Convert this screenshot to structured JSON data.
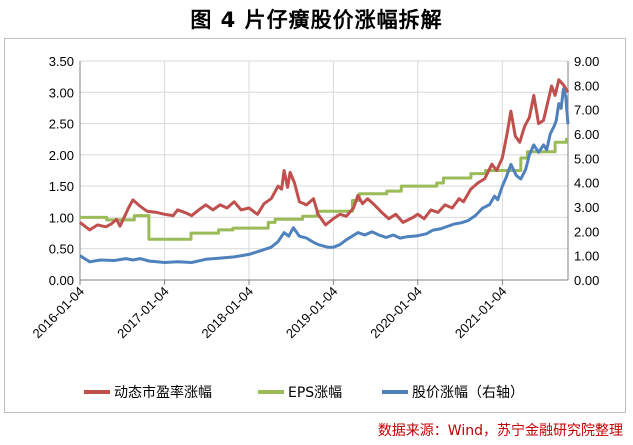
{
  "title": "图 4  片仔癀股价涨幅拆解",
  "source": "数据来源：Wind，苏宁金融研究院整理",
  "chart_data": {
    "type": "line",
    "title": "图 4  片仔癀股价涨幅拆解",
    "x_type": "date",
    "x_range": [
      "2016-01-04",
      "2021-10-15"
    ],
    "x_ticks": [
      "2016-01-04",
      "2017-01-04",
      "2018-01-04",
      "2019-01-04",
      "2020-01-04",
      "2021-01-04"
    ],
    "ylim_left": [
      0,
      3.5
    ],
    "yticks_left": [
      "0.00",
      "0.50",
      "1.00",
      "1.50",
      "2.00",
      "2.50",
      "3.00",
      "3.50"
    ],
    "ylim_right": [
      0,
      9
    ],
    "yticks_right": [
      "0.00",
      "1.00",
      "2.00",
      "3.00",
      "4.00",
      "5.00",
      "6.00",
      "7.00",
      "8.00",
      "9.00"
    ],
    "grid": true,
    "legend_position": "bottom",
    "colors": {
      "pe": "#c0504d",
      "eps": "#9bbb59",
      "price": "#4f81bd"
    },
    "series": [
      {
        "name": "动态市盈率涨幅",
        "axis": "left",
        "color": "#c0504d",
        "points": [
          [
            "2016-01-04",
            0.92
          ],
          [
            "2016-02-15",
            0.8
          ],
          [
            "2016-03-20",
            0.88
          ],
          [
            "2016-04-25",
            0.85
          ],
          [
            "2016-05-20",
            0.9
          ],
          [
            "2016-06-10",
            0.97
          ],
          [
            "2016-06-25",
            0.86
          ],
          [
            "2016-07-10",
            0.98
          ],
          [
            "2016-08-01",
            1.15
          ],
          [
            "2016-08-20",
            1.28
          ],
          [
            "2016-09-20",
            1.18
          ],
          [
            "2016-10-20",
            1.1
          ],
          [
            "2016-12-01",
            1.08
          ],
          [
            "2017-01-04",
            1.05
          ],
          [
            "2017-02-10",
            1.03
          ],
          [
            "2017-03-01",
            1.12
          ],
          [
            "2017-04-01",
            1.08
          ],
          [
            "2017-05-01",
            1.03
          ],
          [
            "2017-06-01",
            1.12
          ],
          [
            "2017-07-01",
            1.2
          ],
          [
            "2017-08-01",
            1.12
          ],
          [
            "2017-09-01",
            1.2
          ],
          [
            "2017-10-01",
            1.15
          ],
          [
            "2017-11-01",
            1.25
          ],
          [
            "2017-12-01",
            1.12
          ],
          [
            "2018-01-04",
            1.15
          ],
          [
            "2018-02-10",
            1.05
          ],
          [
            "2018-03-10",
            1.22
          ],
          [
            "2018-04-10",
            1.3
          ],
          [
            "2018-05-10",
            1.5
          ],
          [
            "2018-05-25",
            1.45
          ],
          [
            "2018-06-05",
            1.75
          ],
          [
            "2018-06-20",
            1.48
          ],
          [
            "2018-07-01",
            1.72
          ],
          [
            "2018-07-20",
            1.55
          ],
          [
            "2018-08-10",
            1.25
          ],
          [
            "2018-09-10",
            1.2
          ],
          [
            "2018-10-10",
            1.3
          ],
          [
            "2018-10-30",
            1.05
          ],
          [
            "2018-12-01",
            0.88
          ],
          [
            "2019-01-04",
            0.98
          ],
          [
            "2019-02-01",
            1.05
          ],
          [
            "2019-03-01",
            1.02
          ],
          [
            "2019-04-01",
            1.15
          ],
          [
            "2019-04-20",
            1.35
          ],
          [
            "2019-05-10",
            1.22
          ],
          [
            "2019-06-01",
            1.3
          ],
          [
            "2019-07-01",
            1.2
          ],
          [
            "2019-08-01",
            1.08
          ],
          [
            "2019-09-01",
            0.98
          ],
          [
            "2019-10-01",
            1.05
          ],
          [
            "2019-11-01",
            0.92
          ],
          [
            "2019-12-15",
            1.0
          ],
          [
            "2020-01-04",
            1.05
          ],
          [
            "2020-02-01",
            0.98
          ],
          [
            "2020-03-01",
            1.12
          ],
          [
            "2020-04-01",
            1.08
          ],
          [
            "2020-05-01",
            1.2
          ],
          [
            "2020-06-01",
            1.15
          ],
          [
            "2020-07-01",
            1.3
          ],
          [
            "2020-07-20",
            1.25
          ],
          [
            "2020-08-20",
            1.45
          ],
          [
            "2020-09-20",
            1.55
          ],
          [
            "2020-10-20",
            1.62
          ],
          [
            "2020-11-20",
            1.85
          ],
          [
            "2020-12-10",
            1.75
          ],
          [
            "2021-01-04",
            1.95
          ],
          [
            "2021-01-25",
            2.35
          ],
          [
            "2021-02-10",
            2.7
          ],
          [
            "2021-03-01",
            2.3
          ],
          [
            "2021-03-20",
            2.2
          ],
          [
            "2021-04-10",
            2.45
          ],
          [
            "2021-05-01",
            2.6
          ],
          [
            "2021-05-20",
            2.95
          ],
          [
            "2021-06-10",
            2.5
          ],
          [
            "2021-07-01",
            2.55
          ],
          [
            "2021-07-20",
            2.85
          ],
          [
            "2021-08-05",
            3.1
          ],
          [
            "2021-08-20",
            2.95
          ],
          [
            "2021-09-05",
            3.2
          ],
          [
            "2021-09-25",
            3.12
          ],
          [
            "2021-10-15",
            3.0
          ]
        ]
      },
      {
        "name": "EPS涨幅",
        "axis": "left",
        "color": "#9bbb59",
        "step": true,
        "points": [
          [
            "2016-01-04",
            1.0
          ],
          [
            "2016-04-28",
            0.96
          ],
          [
            "2016-08-26",
            1.03
          ],
          [
            "2016-10-28",
            0.65
          ],
          [
            "2017-04-28",
            0.75
          ],
          [
            "2017-08-25",
            0.8
          ],
          [
            "2017-10-27",
            0.83
          ],
          [
            "2018-03-28",
            0.92
          ],
          [
            "2018-04-27",
            0.97
          ],
          [
            "2018-08-24",
            1.02
          ],
          [
            "2018-10-26",
            1.1
          ],
          [
            "2019-03-28",
            1.27
          ],
          [
            "2019-04-26",
            1.38
          ],
          [
            "2019-08-23",
            1.42
          ],
          [
            "2019-10-25",
            1.5
          ],
          [
            "2020-03-26",
            1.55
          ],
          [
            "2020-04-24",
            1.63
          ],
          [
            "2020-08-21",
            1.7
          ],
          [
            "2020-10-23",
            1.75
          ],
          [
            "2021-03-25",
            1.95
          ],
          [
            "2021-04-23",
            2.05
          ],
          [
            "2021-06-25",
            2.05
          ],
          [
            "2021-08-20",
            2.2
          ],
          [
            "2021-10-08",
            2.25
          ],
          [
            "2021-10-15",
            2.25
          ]
        ]
      },
      {
        "name": "股价涨幅（右轴）",
        "axis": "right",
        "color": "#4f81bd",
        "points": [
          [
            "2016-01-04",
            1.0
          ],
          [
            "2016-02-15",
            0.75
          ],
          [
            "2016-04-01",
            0.82
          ],
          [
            "2016-06-01",
            0.8
          ],
          [
            "2016-07-20",
            0.88
          ],
          [
            "2016-08-20",
            0.82
          ],
          [
            "2016-09-20",
            0.88
          ],
          [
            "2016-10-28",
            0.78
          ],
          [
            "2016-12-01",
            0.75
          ],
          [
            "2017-01-04",
            0.72
          ],
          [
            "2017-03-01",
            0.75
          ],
          [
            "2017-05-01",
            0.72
          ],
          [
            "2017-07-01",
            0.85
          ],
          [
            "2017-09-01",
            0.9
          ],
          [
            "2017-11-01",
            0.95
          ],
          [
            "2018-01-04",
            1.05
          ],
          [
            "2018-03-01",
            1.22
          ],
          [
            "2018-04-10",
            1.35
          ],
          [
            "2018-05-10",
            1.58
          ],
          [
            "2018-06-05",
            1.95
          ],
          [
            "2018-06-25",
            1.8
          ],
          [
            "2018-07-15",
            2.15
          ],
          [
            "2018-08-10",
            1.8
          ],
          [
            "2018-09-10",
            1.72
          ],
          [
            "2018-10-10",
            1.55
          ],
          [
            "2018-11-01",
            1.45
          ],
          [
            "2018-12-10",
            1.35
          ],
          [
            "2019-01-04",
            1.35
          ],
          [
            "2019-02-01",
            1.45
          ],
          [
            "2019-03-01",
            1.65
          ],
          [
            "2019-04-20",
            1.95
          ],
          [
            "2019-05-20",
            1.85
          ],
          [
            "2019-06-20",
            1.98
          ],
          [
            "2019-07-20",
            1.85
          ],
          [
            "2019-08-20",
            1.75
          ],
          [
            "2019-09-20",
            1.85
          ],
          [
            "2019-10-20",
            1.72
          ],
          [
            "2019-11-20",
            1.78
          ],
          [
            "2020-01-04",
            1.82
          ],
          [
            "2020-02-10",
            1.9
          ],
          [
            "2020-03-10",
            2.05
          ],
          [
            "2020-04-10",
            2.1
          ],
          [
            "2020-05-10",
            2.2
          ],
          [
            "2020-06-10",
            2.3
          ],
          [
            "2020-07-10",
            2.35
          ],
          [
            "2020-08-10",
            2.45
          ],
          [
            "2020-09-10",
            2.65
          ],
          [
            "2020-10-10",
            2.95
          ],
          [
            "2020-11-10",
            3.1
          ],
          [
            "2020-12-01",
            3.45
          ],
          [
            "2020-12-15",
            3.3
          ],
          [
            "2021-01-04",
            3.85
          ],
          [
            "2021-01-20",
            4.2
          ],
          [
            "2021-02-10",
            4.75
          ],
          [
            "2021-03-05",
            4.3
          ],
          [
            "2021-03-25",
            4.15
          ],
          [
            "2021-04-15",
            4.55
          ],
          [
            "2021-05-01",
            5.15
          ],
          [
            "2021-05-20",
            5.55
          ],
          [
            "2021-06-10",
            5.25
          ],
          [
            "2021-07-01",
            5.55
          ],
          [
            "2021-07-15",
            5.35
          ],
          [
            "2021-07-30",
            6.0
          ],
          [
            "2021-08-15",
            6.3
          ],
          [
            "2021-08-25",
            6.55
          ],
          [
            "2021-09-05",
            7.25
          ],
          [
            "2021-09-15",
            7.05
          ],
          [
            "2021-09-25",
            7.85
          ],
          [
            "2021-10-05",
            7.55
          ],
          [
            "2021-10-15",
            6.4
          ]
        ]
      }
    ]
  }
}
